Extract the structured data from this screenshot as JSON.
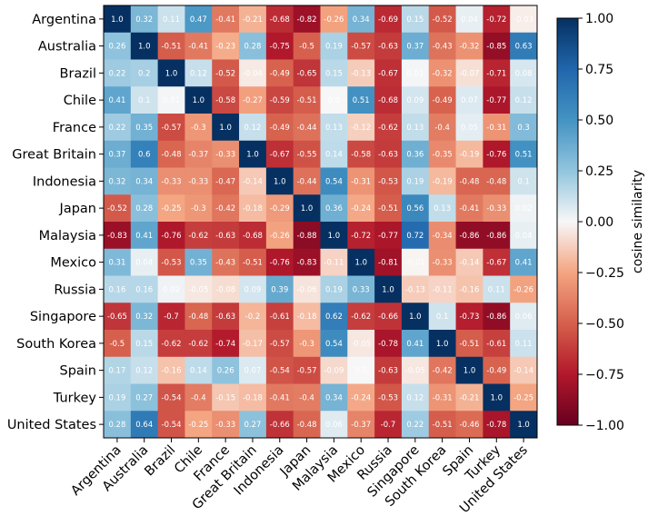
{
  "chart_data": {
    "type": "heatmap",
    "rows": [
      "Argentina",
      "Australia",
      "Brazil",
      "Chile",
      "France",
      "Great Britain",
      "Indonesia",
      "Japan",
      "Malaysia",
      "Mexico",
      "Russia",
      "Singapore",
      "South Korea",
      "Spain",
      "Turkey",
      "United States"
    ],
    "columns": [
      "Argentina",
      "Australia",
      "Brazil",
      "Chile",
      "France",
      "Great Britain",
      "Indonesia",
      "Japan",
      "Malaysia",
      "Mexico",
      "Russia",
      "Singapore",
      "South Korea",
      "Spain",
      "Turkey",
      "United States"
    ],
    "values": [
      [
        "1.0",
        "0.32",
        "0.11",
        "0.47",
        "-0.41",
        "-0.21",
        "-0.68",
        "-0.82",
        "-0.26",
        "0.34",
        "-0.69",
        "0.15",
        "-0.52",
        "0.04",
        "-0.72",
        "-0.03"
      ],
      [
        "0.26",
        "1.0",
        "-0.51",
        "-0.41",
        "-0.23",
        "0.28",
        "-0.75",
        "-0.5",
        "0.19",
        "-0.57",
        "-0.63",
        "0.37",
        "-0.43",
        "-0.32",
        "-0.85",
        "0.63"
      ],
      [
        "0.22",
        "0.2",
        "1.0",
        "0.12",
        "-0.52",
        "-0.04",
        "-0.49",
        "-0.65",
        "0.15",
        "-0.13",
        "-0.67",
        "0.01",
        "-0.32",
        "-0.07",
        "-0.71",
        "0.08"
      ],
      [
        "0.41",
        "0.1",
        "0.01",
        "1.0",
        "-0.58",
        "-0.27",
        "-0.59",
        "-0.51",
        "0.0",
        "0.51",
        "-0.68",
        "0.09",
        "-0.49",
        "0.07",
        "-0.77",
        "0.12"
      ],
      [
        "0.22",
        "0.35",
        "-0.57",
        "-0.3",
        "1.0",
        "0.12",
        "-0.49",
        "-0.44",
        "0.13",
        "-0.12",
        "-0.62",
        "0.13",
        "-0.4",
        "0.05",
        "-0.31",
        "0.3"
      ],
      [
        "0.37",
        "0.6",
        "-0.48",
        "-0.37",
        "-0.33",
        "1.0",
        "-0.67",
        "-0.55",
        "0.14",
        "-0.58",
        "-0.63",
        "0.36",
        "-0.35",
        "-0.19",
        "-0.76",
        "0.51"
      ],
      [
        "0.32",
        "0.34",
        "-0.33",
        "-0.33",
        "-0.47",
        "-0.14",
        "1.0",
        "-0.44",
        "0.54",
        "-0.31",
        "-0.53",
        "0.19",
        "-0.19",
        "-0.48",
        "-0.48",
        "0.1"
      ],
      [
        "-0.52",
        "0.28",
        "-0.25",
        "-0.3",
        "-0.42",
        "-0.18",
        "-0.29",
        "1.0",
        "0.36",
        "-0.24",
        "-0.51",
        "0.56",
        "0.13",
        "-0.41",
        "-0.33",
        "0.02"
      ],
      [
        "-0.83",
        "0.41",
        "-0.76",
        "-0.62",
        "-0.63",
        "-0.68",
        "-0.26",
        "-0.88",
        "1.0",
        "-0.72",
        "-0.77",
        "0.72",
        "-0.34",
        "-0.86",
        "-0.86",
        "0.04"
      ],
      [
        "0.31",
        "0.04",
        "-0.53",
        "0.35",
        "-0.43",
        "-0.51",
        "-0.76",
        "-0.83",
        "-0.11",
        "1.0",
        "-0.81",
        "-0.01",
        "-0.33",
        "-0.14",
        "-0.67",
        "0.41"
      ],
      [
        "0.16",
        "0.16",
        "0.02",
        "-0.05",
        "-0.08",
        "0.09",
        "0.39",
        "-0.06",
        "0.19",
        "0.33",
        "1.0",
        "-0.13",
        "-0.11",
        "-0.16",
        "0.11",
        "-0.26"
      ],
      [
        "-0.65",
        "0.32",
        "-0.7",
        "-0.48",
        "-0.63",
        "-0.2",
        "-0.61",
        "-0.18",
        "0.62",
        "-0.62",
        "-0.66",
        "1.0",
        "0.1",
        "-0.73",
        "-0.86",
        "0.06"
      ],
      [
        "-0.5",
        "0.15",
        "-0.62",
        "-0.62",
        "-0.74",
        "-0.17",
        "-0.57",
        "-0.3",
        "0.54",
        "-0.05",
        "-0.78",
        "0.41",
        "1.0",
        "-0.51",
        "-0.61",
        "0.11"
      ],
      [
        "0.17",
        "0.12",
        "-0.16",
        "0.14",
        "0.26",
        "0.07",
        "-0.54",
        "-0.57",
        "-0.09",
        "0.0",
        "-0.63",
        "-0.05",
        "-0.42",
        "1.0",
        "-0.49",
        "-0.14"
      ],
      [
        "0.19",
        "0.27",
        "-0.54",
        "-0.4",
        "-0.15",
        "-0.18",
        "-0.41",
        "-0.4",
        "0.34",
        "-0.24",
        "-0.53",
        "0.12",
        "-0.31",
        "-0.21",
        "1.0",
        "-0.25"
      ],
      [
        "0.28",
        "0.64",
        "-0.54",
        "-0.25",
        "-0.33",
        "0.27",
        "-0.66",
        "-0.48",
        "0.06",
        "-0.37",
        "-0.7",
        "0.22",
        "-0.51",
        "-0.46",
        "-0.78",
        "1.0"
      ]
    ],
    "colorbar": {
      "label": "cosine similarity",
      "min": -1.0,
      "max": 1.0,
      "ticks": [
        "1.00",
        "0.75",
        "0.50",
        "0.25",
        "0.00",
        "−0.25",
        "−0.50",
        "−0.75",
        "−1.00"
      ]
    },
    "colormap": "RdBu",
    "grid": false
  }
}
